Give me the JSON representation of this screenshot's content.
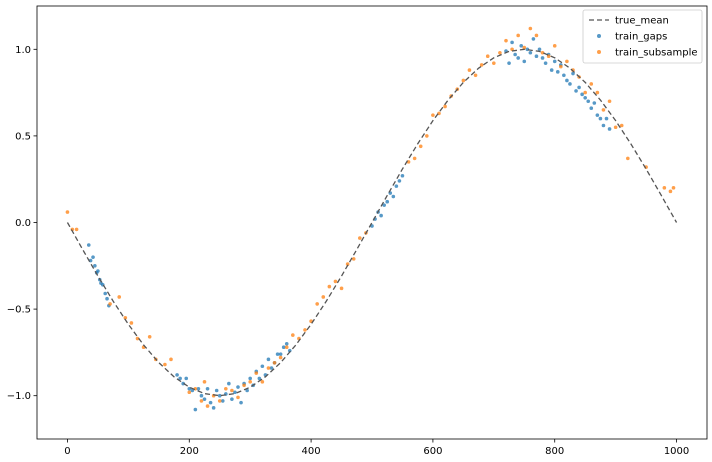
{
  "chart_data": {
    "type": "scatter",
    "title": "",
    "xlabel": "",
    "ylabel": "",
    "xlim": [
      -50,
      1050
    ],
    "ylim": [
      -1.25,
      1.25
    ],
    "x_ticks": [
      0,
      200,
      400,
      600,
      800,
      1000
    ],
    "y_ticks": [
      -1.0,
      -0.5,
      0.0,
      0.5,
      1.0
    ],
    "x_tick_labels": [
      "0",
      "200",
      "400",
      "600",
      "800",
      "1000"
    ],
    "y_tick_labels": [
      "−1.0",
      "−0.5",
      "0.0",
      "0.5",
      "1.0"
    ],
    "grid": false,
    "legend_position": "top-right",
    "series": [
      {
        "name": "true_mean",
        "kind": "line",
        "style": "dashed",
        "color": "#555555",
        "x": [
          0,
          25,
          50,
          75,
          100,
          125,
          150,
          175,
          200,
          225,
          250,
          275,
          300,
          325,
          350,
          375,
          400,
          425,
          450,
          475,
          500,
          525,
          550,
          575,
          600,
          625,
          650,
          675,
          700,
          725,
          750,
          775,
          800,
          825,
          850,
          875,
          900,
          925,
          950,
          975,
          1000
        ],
        "y": [
          0.0,
          -0.156,
          -0.309,
          -0.454,
          -0.588,
          -0.707,
          -0.809,
          -0.891,
          -0.951,
          -0.988,
          -1.0,
          -0.988,
          -0.951,
          -0.891,
          -0.809,
          -0.707,
          -0.588,
          -0.454,
          -0.309,
          -0.156,
          0.0,
          0.156,
          0.309,
          0.454,
          0.588,
          0.707,
          0.809,
          0.891,
          0.951,
          0.988,
          1.0,
          0.988,
          0.951,
          0.891,
          0.809,
          0.707,
          0.588,
          0.454,
          0.309,
          0.156,
          0.0
        ]
      },
      {
        "name": "train_gaps",
        "kind": "scatter",
        "color": "#1f77b4",
        "x": [
          35,
          38,
          42,
          45,
          48,
          50,
          53,
          55,
          58,
          62,
          65,
          68,
          180,
          185,
          190,
          195,
          200,
          205,
          210,
          215,
          220,
          225,
          230,
          235,
          240,
          245,
          250,
          255,
          260,
          265,
          270,
          275,
          280,
          285,
          290,
          295,
          300,
          305,
          310,
          315,
          320,
          325,
          330,
          335,
          340,
          345,
          350,
          355,
          360,
          365,
          500,
          505,
          510,
          515,
          520,
          525,
          530,
          535,
          540,
          545,
          550,
          720,
          725,
          730,
          735,
          740,
          745,
          750,
          755,
          760,
          765,
          770,
          775,
          780,
          785,
          790,
          795,
          800,
          805,
          810,
          815,
          820,
          825,
          830,
          835,
          840,
          845,
          850,
          855,
          860,
          865,
          870,
          875,
          880,
          885,
          890
        ],
        "y": [
          -0.13,
          -0.22,
          -0.2,
          -0.25,
          -0.29,
          -0.28,
          -0.33,
          -0.35,
          -0.36,
          -0.41,
          -0.44,
          -0.48,
          -0.88,
          -0.9,
          -0.93,
          -0.9,
          -0.96,
          -0.97,
          -1.08,
          -0.96,
          -1.0,
          -1.02,
          -0.96,
          -1.04,
          -1.07,
          -0.97,
          -1.0,
          -1.03,
          -0.99,
          -0.93,
          -1.02,
          -0.98,
          -0.95,
          -1.04,
          -0.93,
          -0.97,
          -0.9,
          -0.94,
          -0.86,
          -0.9,
          -0.83,
          -0.88,
          -0.79,
          -0.84,
          -0.81,
          -0.76,
          -0.76,
          -0.72,
          -0.7,
          -0.74,
          -0.02,
          0.02,
          0.06,
          0.04,
          0.1,
          0.12,
          0.17,
          0.15,
          0.21,
          0.24,
          0.27,
          0.99,
          0.92,
          1.04,
          0.97,
          0.95,
          1.02,
          0.93,
          1.0,
          0.98,
          1.06,
          0.96,
          1.0,
          0.95,
          0.92,
          0.97,
          0.88,
          0.93,
          0.87,
          0.91,
          0.85,
          0.82,
          0.8,
          0.86,
          0.76,
          0.78,
          0.74,
          0.72,
          0.7,
          0.66,
          0.69,
          0.62,
          0.6,
          0.56,
          0.6,
          0.54
        ]
      },
      {
        "name": "train_subsample",
        "kind": "scatter",
        "color": "#ff7f0e",
        "x": [
          0,
          8,
          15,
          70,
          85,
          95,
          105,
          115,
          125,
          135,
          145,
          160,
          170,
          200,
          210,
          220,
          225,
          230,
          240,
          250,
          260,
          270,
          280,
          290,
          300,
          310,
          320,
          330,
          340,
          350,
          360,
          370,
          380,
          390,
          400,
          410,
          420,
          430,
          440,
          450,
          460,
          470,
          480,
          490,
          560,
          570,
          580,
          590,
          600,
          610,
          620,
          630,
          640,
          650,
          660,
          670,
          680,
          690,
          700,
          710,
          720,
          730,
          740,
          750,
          760,
          770,
          780,
          790,
          800,
          810,
          820,
          830,
          840,
          850,
          860,
          870,
          880,
          890,
          900,
          910,
          920,
          950,
          980,
          990,
          995
        ],
        "y": [
          0.06,
          -0.04,
          -0.04,
          -0.47,
          -0.43,
          -0.55,
          -0.58,
          -0.67,
          -0.72,
          -0.66,
          -0.79,
          -0.82,
          -0.79,
          -0.98,
          -0.96,
          -1.03,
          -0.92,
          -1.06,
          -1.0,
          -1.03,
          -0.96,
          -0.97,
          -1.01,
          -0.94,
          -0.92,
          -0.87,
          -0.92,
          -0.84,
          -0.81,
          -0.78,
          -0.72,
          -0.65,
          -0.67,
          -0.62,
          -0.57,
          -0.47,
          -0.43,
          -0.37,
          -0.34,
          -0.38,
          -0.24,
          -0.21,
          -0.09,
          -0.06,
          0.35,
          0.37,
          0.44,
          0.5,
          0.62,
          0.63,
          0.67,
          0.73,
          0.77,
          0.82,
          0.88,
          0.85,
          0.91,
          0.96,
          0.92,
          0.98,
          1.05,
          1.0,
          1.08,
          1.01,
          1.12,
          1.08,
          0.98,
          0.96,
          1.02,
          0.9,
          0.93,
          0.88,
          0.84,
          0.75,
          0.8,
          0.75,
          0.65,
          0.7,
          0.55,
          0.56,
          0.37,
          0.32,
          0.2,
          0.18,
          0.2
        ]
      }
    ]
  }
}
